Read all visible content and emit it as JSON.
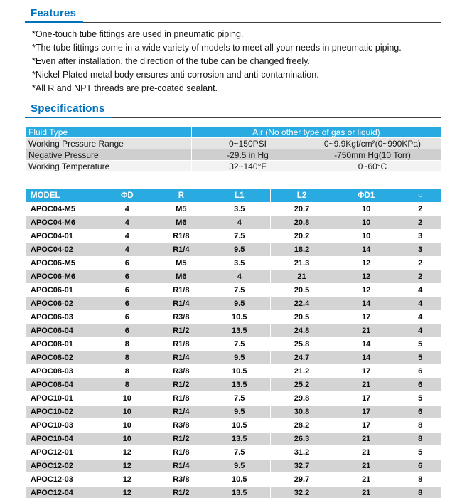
{
  "features": {
    "title": "Features",
    "items": [
      "*One-touch tube fittings are used in pneumatic piping.",
      "*The tube fittings come in a wide variety of models to meet all your needs in pneumatic piping.",
      "*Even after installation, the direction of the tube can be changed freely.",
      "*Nickel-Plated metal body ensures anti-corrosion and anti-contamination.",
      "*All R and NPT threads are pre-coated sealant."
    ]
  },
  "specifications": {
    "title": "Specifications",
    "table": {
      "header": {
        "label": "Fluid Type",
        "value": "Air (No other type of gas or liquid)"
      },
      "rows": [
        {
          "label": "Working Pressure Range",
          "col1": "0~150PSI",
          "col2": "0~9.9Kgf/cm²(0~990KPa)"
        },
        {
          "label": "Negative Pressure",
          "col1": "-29.5 in Hg",
          "col2": "-750mm Hg(10 Torr)"
        },
        {
          "label": "Working Temperature",
          "col1": "32~140°F",
          "col2": "0~60°C"
        }
      ]
    }
  },
  "model_table": {
    "columns": [
      "MODEL",
      "ΦD",
      "R",
      "L1",
      "L2",
      "ΦD1",
      "○"
    ],
    "rows": [
      [
        "APOC04-M5",
        "4",
        "M5",
        "3.5",
        "20.7",
        "10",
        "2"
      ],
      [
        "APOC04-M6",
        "4",
        "M6",
        "4",
        "20.8",
        "10",
        "2"
      ],
      [
        "APOC04-01",
        "4",
        "R1/8",
        "7.5",
        "20.2",
        "10",
        "3"
      ],
      [
        "APOC04-02",
        "4",
        "R1/4",
        "9.5",
        "18.2",
        "14",
        "3"
      ],
      [
        "APOC06-M5",
        "6",
        "M5",
        "3.5",
        "21.3",
        "12",
        "2"
      ],
      [
        "APOC06-M6",
        "6",
        "M6",
        "4",
        "21",
        "12",
        "2"
      ],
      [
        "APOC06-01",
        "6",
        "R1/8",
        "7.5",
        "20.5",
        "12",
        "4"
      ],
      [
        "APOC06-02",
        "6",
        "R1/4",
        "9.5",
        "22.4",
        "14",
        "4"
      ],
      [
        "APOC06-03",
        "6",
        "R3/8",
        "10.5",
        "20.5",
        "17",
        "4"
      ],
      [
        "APOC06-04",
        "6",
        "R1/2",
        "13.5",
        "24.8",
        "21",
        "4"
      ],
      [
        "APOC08-01",
        "8",
        "R1/8",
        "7.5",
        "25.8",
        "14",
        "5"
      ],
      [
        "APOC08-02",
        "8",
        "R1/4",
        "9.5",
        "24.7",
        "14",
        "5"
      ],
      [
        "APOC08-03",
        "8",
        "R3/8",
        "10.5",
        "21.2",
        "17",
        "6"
      ],
      [
        "APOC08-04",
        "8",
        "R1/2",
        "13.5",
        "25.2",
        "21",
        "6"
      ],
      [
        "APOC10-01",
        "10",
        "R1/8",
        "7.5",
        "29.8",
        "17",
        "5"
      ],
      [
        "APOC10-02",
        "10",
        "R1/4",
        "9.5",
        "30.8",
        "17",
        "6"
      ],
      [
        "APOC10-03",
        "10",
        "R3/8",
        "10.5",
        "28.2",
        "17",
        "8"
      ],
      [
        "APOC10-04",
        "10",
        "R1/2",
        "13.5",
        "26.3",
        "21",
        "8"
      ],
      [
        "APOC12-01",
        "12",
        "R1/8",
        "7.5",
        "31.2",
        "21",
        "5"
      ],
      [
        "APOC12-02",
        "12",
        "R1/4",
        "9.5",
        "32.7",
        "21",
        "6"
      ],
      [
        "APOC12-03",
        "12",
        "R3/8",
        "10.5",
        "29.7",
        "21",
        "8"
      ],
      [
        "APOC12-04",
        "12",
        "R1/2",
        "13.5",
        "32.2",
        "21",
        "8"
      ]
    ]
  }
}
